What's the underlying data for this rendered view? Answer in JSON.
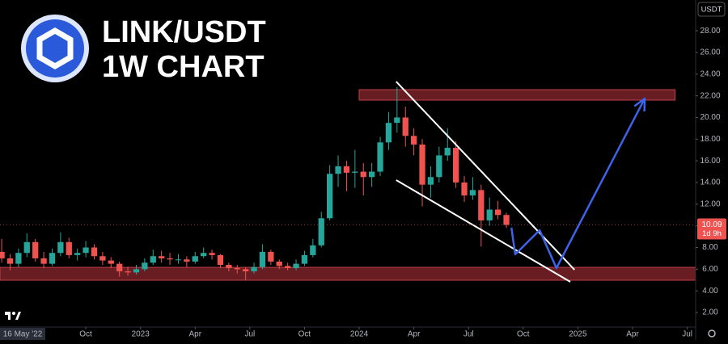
{
  "chart_data": {
    "type": "candlestick",
    "title": "LINK/USDT",
    "subtitle": "1W CHART",
    "currency": "USDT",
    "date_label": "16 May '22",
    "last_price": 10.09,
    "countdown": "1d 9h",
    "up_color": "#26a69a",
    "down_color": "#ef5350",
    "xlim": [
      -0.4,
      165
    ],
    "ylim": [
      0.66,
      30.84
    ],
    "xticks": [
      {
        "value": 20,
        "label": "Oct"
      },
      {
        "value": 33,
        "label": "2023"
      },
      {
        "value": 46,
        "label": "Apr"
      },
      {
        "value": 59,
        "label": "Jul"
      },
      {
        "value": 72,
        "label": "Oct"
      },
      {
        "value": 85,
        "label": "2024"
      },
      {
        "value": 98,
        "label": "Apr"
      },
      {
        "value": 111,
        "label": "Jul"
      },
      {
        "value": 124,
        "label": "Oct"
      },
      {
        "value": 137,
        "label": "2025"
      },
      {
        "value": 150,
        "label": "Apr"
      },
      {
        "value": 163,
        "label": "Jul"
      }
    ],
    "yticks": [
      {
        "value": 2,
        "label": "2.00"
      },
      {
        "value": 4,
        "label": "4.00"
      },
      {
        "value": 6,
        "label": "6.00"
      },
      {
        "value": 8,
        "label": "8.00"
      },
      {
        "value": 10,
        "label": "10.00"
      },
      {
        "value": 12,
        "label": "12.00"
      },
      {
        "value": 14,
        "label": "14.00"
      },
      {
        "value": 16,
        "label": "16.00"
      },
      {
        "value": 18,
        "label": "18.00"
      },
      {
        "value": 20,
        "label": "20.00"
      },
      {
        "value": 22,
        "label": "22.00"
      },
      {
        "value": 24,
        "label": "24.00"
      },
      {
        "value": 26,
        "label": "26.00"
      },
      {
        "value": 28,
        "label": "28.00"
      }
    ],
    "x": [
      0,
      2,
      4,
      6,
      8,
      10,
      12,
      14,
      16,
      18,
      20,
      22,
      24,
      26,
      28,
      30,
      32,
      34,
      36,
      38,
      40,
      42,
      44,
      46,
      48,
      50,
      52,
      54,
      56,
      58,
      60,
      62,
      64,
      66,
      68,
      70,
      72,
      74,
      76,
      78,
      80,
      82,
      84,
      86,
      88,
      90,
      92,
      94,
      96,
      98,
      100,
      102,
      104,
      106,
      108,
      110,
      112,
      114,
      116,
      118,
      120
    ],
    "open": [
      7.6,
      7.0,
      6.5,
      7.5,
      8.5,
      7.0,
      6.5,
      7.5,
      8.5,
      7.3,
      7.5,
      8.0,
      7.2,
      6.8,
      6.5,
      5.8,
      5.7,
      6.0,
      6.6,
      7.2,
      7.0,
      6.9,
      6.9,
      6.7,
      7.2,
      7.5,
      7.3,
      6.4,
      6.1,
      6.0,
      5.8,
      6.2,
      7.6,
      6.7,
      6.3,
      6.1,
      6.5,
      7.3,
      8.2,
      10.7,
      14.8,
      15.5,
      14.9,
      15.0,
      14.5,
      15.0,
      17.7,
      19.5,
      20.0,
      18.3,
      17.5,
      13.8,
      14.5,
      16.5,
      17.2,
      14.0,
      12.8,
      13.3,
      10.5,
      11.5,
      11.0
    ],
    "high": [
      8.8,
      7.4,
      7.9,
      9.3,
      8.8,
      7.6,
      7.9,
      9.4,
      8.9,
      7.9,
      8.6,
      8.3,
      7.6,
      7.1,
      6.7,
      6.2,
      6.4,
      7.0,
      7.8,
      7.7,
      7.5,
      7.4,
      7.2,
      7.6,
      8.0,
      7.8,
      7.4,
      6.6,
      6.4,
      6.2,
      6.6,
      8.3,
      7.8,
      6.9,
      6.6,
      6.9,
      7.7,
      8.8,
      11.3,
      15.6,
      16.5,
      16.0,
      17.0,
      15.8,
      15.8,
      18.2,
      20.5,
      22.8,
      21.0,
      19.0,
      18.0,
      15.5,
      17.3,
      19.0,
      17.8,
      14.6,
      14.5,
      13.8,
      12.6,
      12.3,
      11.2
    ],
    "low": [
      6.6,
      5.9,
      6.2,
      7.1,
      6.7,
      6.1,
      6.3,
      7.2,
      7.0,
      6.8,
      7.1,
      6.9,
      6.4,
      6.1,
      5.3,
      5.4,
      5.5,
      5.8,
      6.4,
      6.6,
      6.4,
      6.5,
      6.2,
      6.5,
      7.0,
      6.9,
      6.1,
      5.8,
      5.6,
      5.0,
      5.6,
      6.0,
      6.4,
      6.0,
      5.9,
      5.9,
      6.3,
      7.1,
      8.0,
      10.5,
      13.6,
      13.2,
      13.5,
      12.8,
      13.6,
      14.6,
      17.0,
      18.6,
      17.3,
      16.5,
      11.8,
      12.6,
      14.0,
      16.0,
      13.5,
      12.2,
      12.4,
      8.1,
      10.0,
      10.6,
      9.8
    ],
    "close": [
      7.0,
      6.5,
      7.5,
      8.5,
      7.0,
      6.5,
      7.5,
      8.5,
      7.3,
      7.5,
      8.0,
      7.2,
      6.8,
      6.5,
      5.8,
      5.7,
      6.0,
      6.6,
      7.2,
      7.0,
      6.9,
      6.9,
      6.7,
      7.2,
      7.5,
      7.3,
      6.4,
      6.1,
      6.0,
      5.8,
      6.2,
      7.6,
      6.7,
      6.3,
      6.1,
      6.5,
      7.3,
      8.2,
      10.7,
      14.8,
      15.5,
      14.9,
      15.0,
      14.5,
      15.0,
      17.7,
      19.5,
      20.0,
      18.3,
      17.5,
      13.8,
      14.5,
      16.5,
      17.2,
      14.0,
      12.8,
      13.3,
      10.5,
      11.5,
      11.0,
      10.09
    ],
    "zones": [
      {
        "x": [
          85,
          160.1
        ],
        "y": [
          21.6,
          22.57
        ],
        "color": "#7a2228"
      },
      {
        "x": [
          -0.4,
          165
        ],
        "y": [
          4.98,
          6.17
        ],
        "color": "#7a2228"
      }
    ],
    "trend_lines": [
      {
        "x": [
          93.8,
          136.2
        ],
        "y": [
          23.31,
          5.95
        ],
        "color": "#ffffff"
      },
      {
        "x": [
          93.8,
          135.2
        ],
        "y": [
          14.22,
          4.83
        ],
        "color": "#ffffff"
      }
    ],
    "projection": {
      "x": [
        121.2,
        122.1,
        127.9,
        131.9,
        152.9
      ],
      "y": [
        9.82,
        7.37,
        9.6,
        6.1,
        21.75
      ],
      "color": "#3d63e8"
    }
  }
}
